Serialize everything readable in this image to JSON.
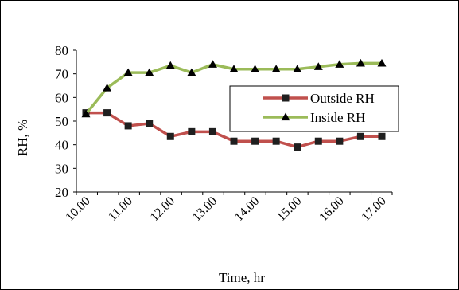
{
  "chart_data": {
    "type": "line",
    "x": [
      "10.00",
      "10.30",
      "11.00",
      "11.30",
      "12.00",
      "12.30",
      "13.00",
      "13.30",
      "14.00",
      "14.30",
      "15.00",
      "15.30",
      "16.00",
      "16.30",
      "17.00"
    ],
    "x_tick_labels": [
      "10.00",
      "11.00",
      "12.00",
      "13.00",
      "14.00",
      "15.00",
      "16.00",
      "17.00"
    ],
    "series": [
      {
        "name": "Outside RH",
        "color": "#C0504D",
        "marker": "square",
        "marker_color": "#1F1F1F",
        "values": [
          53.5,
          53.5,
          48,
          49,
          43.5,
          45.5,
          45.5,
          41.5,
          41.5,
          41.5,
          39,
          41.5,
          41.5,
          43.5,
          43.5
        ]
      },
      {
        "name": "Inside RH",
        "color": "#9BBB59",
        "marker": "triangle",
        "marker_color": "#000000",
        "values": [
          53,
          64,
          70.5,
          70.5,
          73.5,
          70.5,
          74,
          72,
          72,
          72,
          72,
          73,
          74,
          74.5,
          74.5
        ]
      }
    ],
    "ylabel": "RH, %",
    "xlabel": "Time, hr",
    "ylim": [
      20,
      80
    ],
    "yticks": [
      20,
      30,
      40,
      50,
      60,
      70,
      80
    ],
    "grid": false,
    "legend_position": "right"
  }
}
